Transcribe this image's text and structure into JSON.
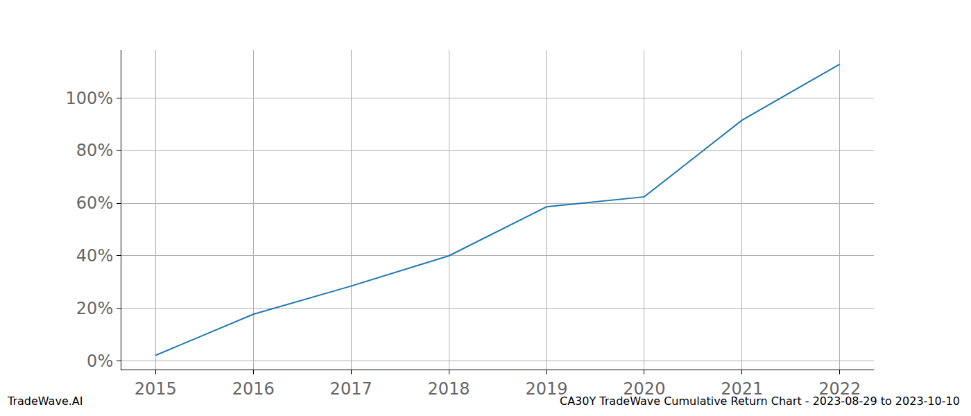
{
  "chart_data": {
    "type": "line",
    "x": [
      2015,
      2016,
      2017,
      2018,
      2019,
      2020,
      2021,
      2022
    ],
    "values": [
      2.2,
      17.8,
      28.5,
      40.0,
      58.6,
      62.4,
      91.5,
      112.8
    ],
    "color": "#1f77b4",
    "xlim": [
      2014.65,
      2022.35
    ],
    "xticks": [
      2015,
      2016,
      2017,
      2018,
      2019,
      2020,
      2021,
      2022
    ],
    "ylim": [
      -3.2,
      118.2
    ],
    "yticks": [
      {
        "value": 0,
        "label": "0%"
      },
      {
        "value": 20,
        "label": "20%"
      },
      {
        "value": 40,
        "label": "40%"
      },
      {
        "value": 60,
        "label": "60%"
      },
      {
        "value": 80,
        "label": "80%"
      },
      {
        "value": 100,
        "label": "100%"
      }
    ],
    "grid": true,
    "annotations": [
      {
        "text": "TradeWave.AI"
      },
      {
        "text": "CA30Y TradeWave Cumulative Return Chart - 2023-08-29 to 2023-10-10"
      }
    ]
  }
}
